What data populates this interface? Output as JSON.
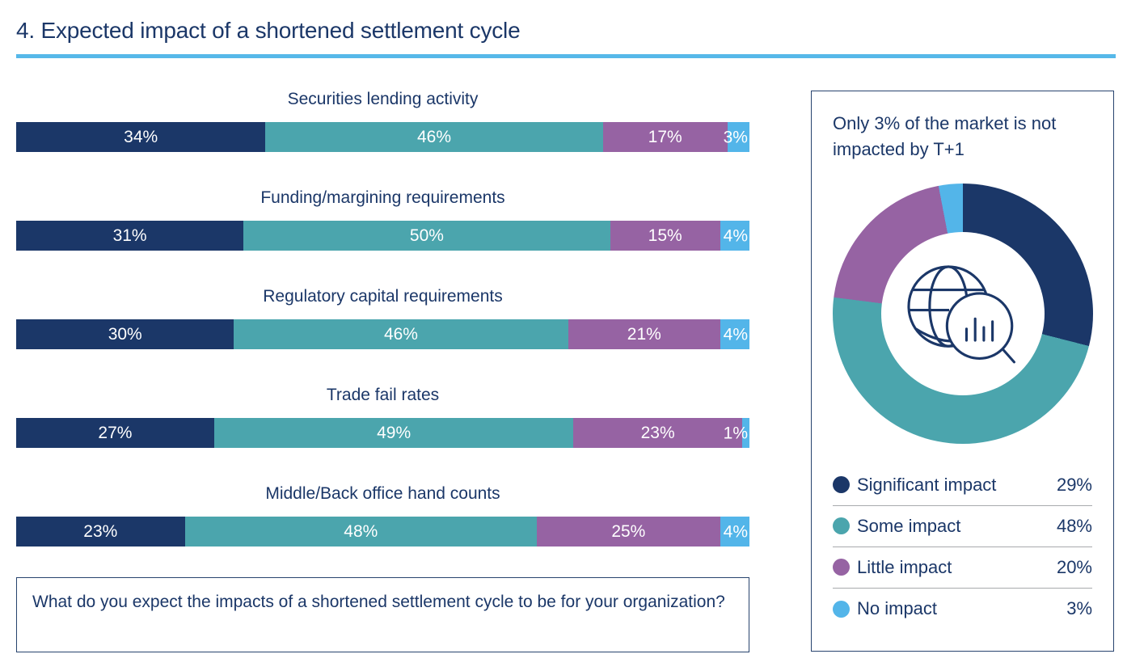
{
  "header": {
    "title": "4. Expected impact of a shortened settlement cycle"
  },
  "colors": {
    "navy": "#1b3768",
    "teal": "#4ba5ad",
    "purple": "#9663a3",
    "light_blue": "#53b5e9",
    "underline": "#56b8e9",
    "panel_border": "#27436e",
    "legend_divider": "#a8aaad",
    "bar_label_text": "#ffffff"
  },
  "chart_data": [
    {
      "type": "bar",
      "subtype": "stacked-horizontal-100pct",
      "unit": "%",
      "segment_names": [
        "Significant impact",
        "Some impact",
        "Little impact",
        "No impact"
      ],
      "segment_color_keys": [
        "navy",
        "teal",
        "purple",
        "light_blue"
      ],
      "categories": [
        "Securities lending activity",
        "Funding/margining requirements",
        "Regulatory capital requirements",
        "Trade fail rates",
        "Middle/Back office hand counts"
      ],
      "rows": [
        {
          "category": "Securities lending activity",
          "values": [
            34,
            46,
            17,
            3
          ],
          "labels": [
            "34%",
            "46%",
            "17%",
            "3%"
          ]
        },
        {
          "category": "Funding/margining requirements",
          "values": [
            31,
            50,
            15,
            4
          ],
          "labels": [
            "31%",
            "50%",
            "15%",
            "4%"
          ]
        },
        {
          "category": "Regulatory capital requirements",
          "values": [
            30,
            46,
            21,
            4
          ],
          "labels": [
            "30%",
            "46%",
            "21%",
            "4%"
          ]
        },
        {
          "category": "Trade fail rates",
          "values": [
            27,
            49,
            23,
            1
          ],
          "labels": [
            "27%",
            "49%",
            "23%",
            "1%"
          ]
        },
        {
          "category": "Middle/Back office hand counts",
          "values": [
            23,
            48,
            25,
            4
          ],
          "labels": [
            "23%",
            "48%",
            "25%",
            "4%"
          ]
        }
      ]
    },
    {
      "type": "pie",
      "subtype": "donut",
      "title": "Only 3% of the market is not impacted by T+1",
      "start_angle_deg": 0,
      "direction": "clockwise",
      "center_icon": "globe-magnifier-bar-chart-icon",
      "legend_position": "below",
      "slices": [
        {
          "label": "Significant impact",
          "value": 29,
          "display": "29%",
          "color_key": "navy"
        },
        {
          "label": "Some impact",
          "value": 48,
          "display": "48%",
          "color_key": "teal"
        },
        {
          "label": "Little impact",
          "value": 20,
          "display": "20%",
          "color_key": "purple"
        },
        {
          "label": "No impact",
          "value": 3,
          "display": "3%",
          "color_key": "light_blue"
        }
      ]
    }
  ],
  "question_box": {
    "text": "What do you expect the impacts of a shortened settlement cycle to be for your organization?"
  }
}
